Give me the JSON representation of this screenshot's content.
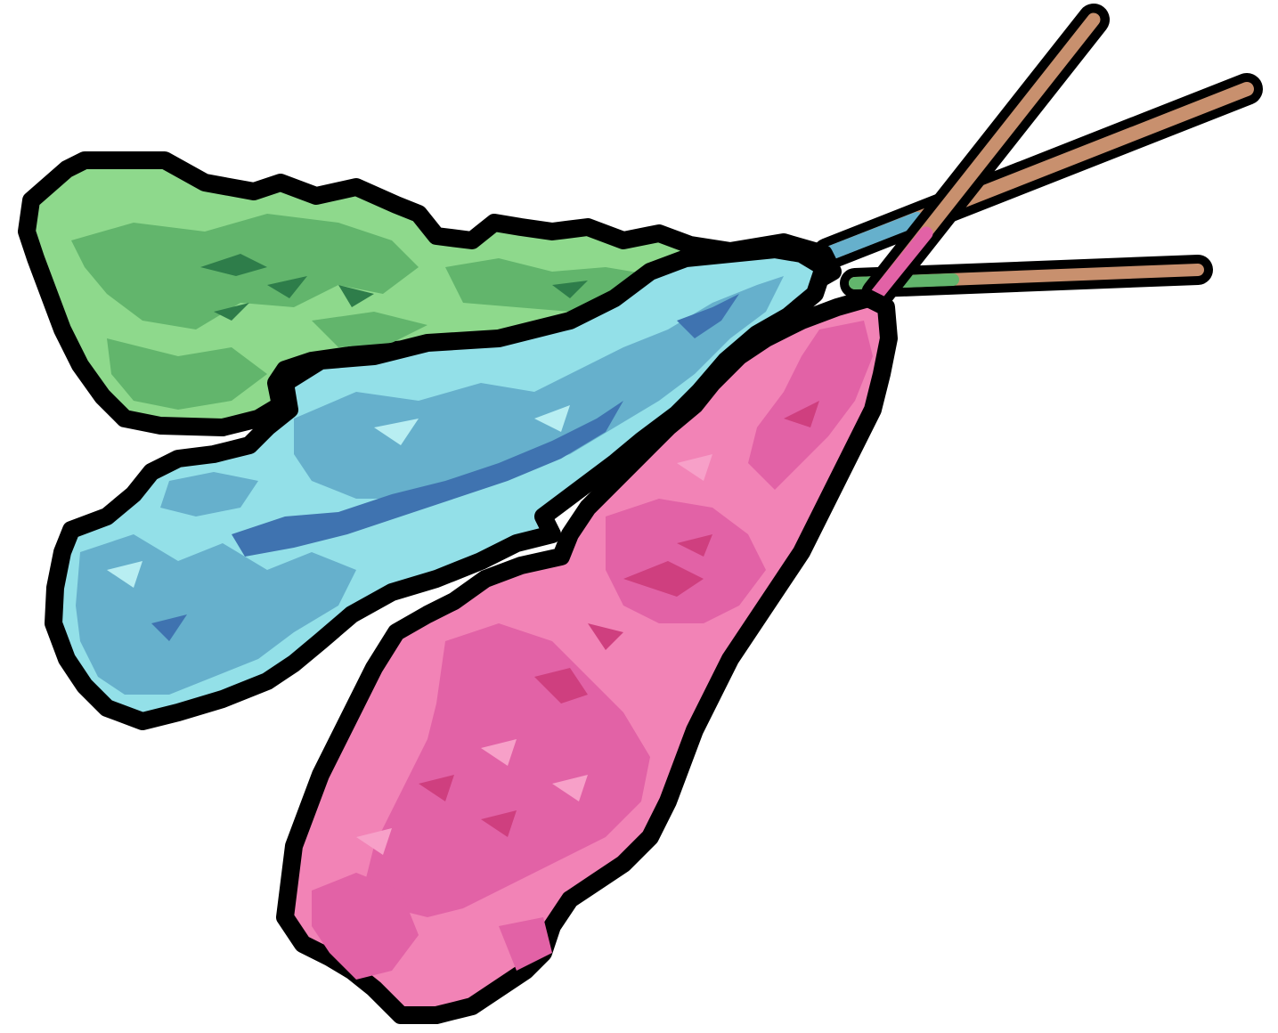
{
  "illustration": {
    "subject": "rock-candy-sticks",
    "outline_color": "#000000",
    "stick_color": "#c8906e",
    "candies": [
      {
        "name": "green",
        "base_color": "#8ed98c",
        "mid_color": "#62b56c",
        "dark_color": "#2e7d4a"
      },
      {
        "name": "blue",
        "base_color": "#93e0e8",
        "mid_color": "#66b0cc",
        "dark_color": "#3f73b0"
      },
      {
        "name": "pink",
        "base_color": "#f283b6",
        "mid_color": "#e262a6",
        "dark_color": "#cf3f7f"
      }
    ]
  }
}
